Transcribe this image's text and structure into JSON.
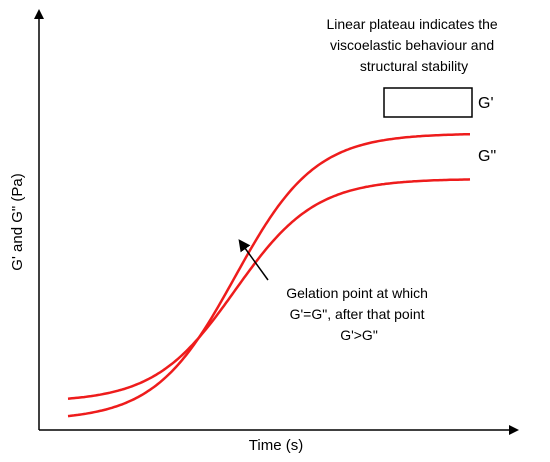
{
  "chart_data": {
    "type": "line",
    "title": "",
    "xlabel": "Time (s)",
    "ylabel": "G' and G\" (Pa)",
    "grid": false,
    "legend": "none",
    "x_ticks": [],
    "y_ticks": [],
    "series": [
      {
        "name": "G'",
        "color": "#ee1c1c",
        "shape": "sigmoid",
        "start_level": 0.04,
        "end_level": 0.85
      },
      {
        "name": "G\"",
        "color": "#ee1c1c",
        "shape": "sigmoid",
        "start_level": 0.09,
        "end_level": 0.72
      }
    ],
    "annotations": {
      "plateau_lines": [
        "Linear plateau indicates the",
        "viscoelastic behaviour and",
        "structural stability"
      ],
      "gelation_lines": [
        "Gelation point at which",
        "G'=G\", after that point",
        "G'>G\""
      ]
    }
  }
}
